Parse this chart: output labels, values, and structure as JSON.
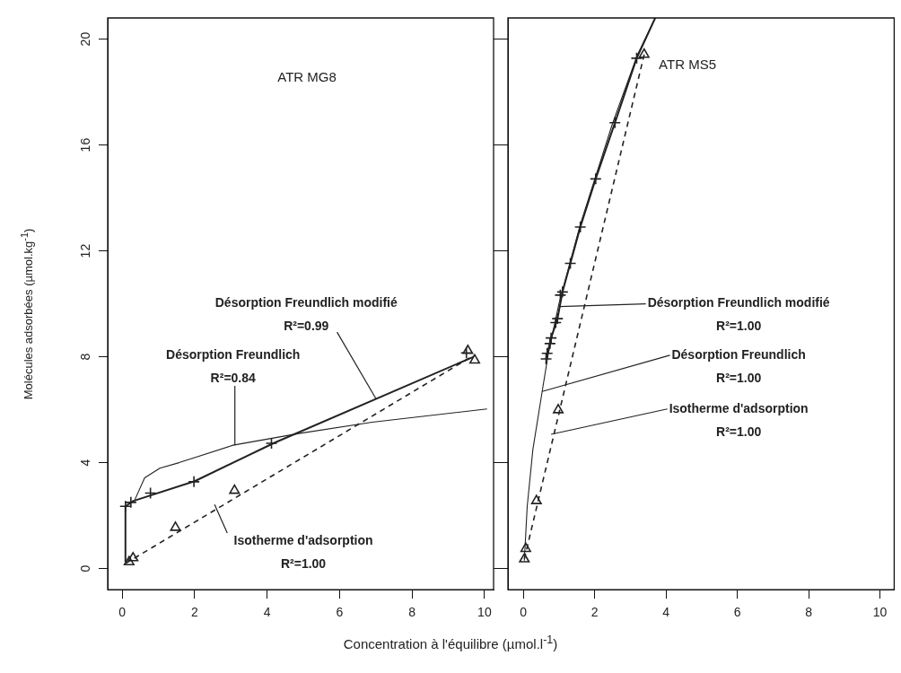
{
  "chart_data": [
    {
      "type": "scatter",
      "title": "ATR MG8",
      "xlabel": "Concentration à l'équilibre (µmol.l$^{-1}$)",
      "ylabel": "Molécules adsorbées (µmol.kg$^{-1}$)",
      "xlim": [
        -0.4,
        10.25
      ],
      "ylim": [
        -0.8,
        20.8
      ],
      "xticks": [
        0,
        2,
        4,
        6,
        8,
        10
      ],
      "yticks": [
        0,
        4,
        8,
        12,
        16,
        20
      ],
      "grid": false,
      "series": [
        {
          "type": "line",
          "color": "#222222",
          "line_style": "dashed",
          "marker": "none",
          "x": [
            0.1,
            9.7
          ],
          "values": [
            0.2,
            8.05
          ]
        },
        {
          "type": "line",
          "color": "#222222",
          "line_style": "solid",
          "marker": "none",
          "x": [
            0.09,
            0.09,
            0.3,
            2.0,
            4.2,
            9.7
          ],
          "values": [
            0.25,
            2.35,
            2.55,
            3.3,
            4.75,
            8.0
          ]
        },
        {
          "type": "line",
          "color": "#222222",
          "line_style": "solid",
          "marker": "none",
          "x": [
            0.35,
            0.62,
            1.04,
            1.57,
            3.06,
            4.87,
            6.9,
            10.07
          ],
          "values": [
            2.6,
            3.43,
            3.79,
            4.0,
            4.66,
            5.1,
            5.53,
            6.03
          ]
        },
        {
          "type": "scatter",
          "color": "#222222",
          "marker": "triangle",
          "x": [
            0.19,
            0.3,
            1.47,
            3.1,
            9.54,
            9.73
          ],
          "values": [
            0.25,
            0.4,
            1.55,
            2.95,
            8.23,
            7.87
          ]
        },
        {
          "type": "scatter",
          "color": "#222222",
          "marker": "cross",
          "x": [
            0.09,
            0.24,
            0.78,
            1.98,
            4.12,
            9.5
          ],
          "values": [
            2.35,
            2.5,
            2.85,
            3.28,
            4.73,
            8.15
          ]
        }
      ],
      "annotations": [
        {
          "text": "Désorption Freundlich modifié\nR²=0.99",
          "x": 7.01,
          "y": 6.4
        },
        {
          "text": "Désorption Freundlich\nR²=0.84",
          "x": 3.11,
          "y": 4.66
        },
        {
          "text": "Isotherme d'adsorption\nR²=1.00",
          "x": 2.55,
          "y": 2.42
        }
      ]
    },
    {
      "type": "scatter",
      "title": "ATR MS5",
      "xlim": [
        -0.43,
        10.4
      ],
      "ylim": [
        -0.8,
        20.8
      ],
      "xticks": [
        0,
        2,
        4,
        6,
        8,
        10
      ],
      "yticks": [
        0,
        4,
        8,
        12,
        16,
        20
      ],
      "grid": false,
      "tick_labels": "x",
      "series": [
        {
          "type": "line",
          "color": "#222222",
          "line_style": "dashed",
          "marker": "none",
          "x": [
            0.03,
            3.39
          ],
          "values": [
            0.36,
            19.42
          ]
        },
        {
          "type": "line",
          "color": "#222222",
          "line_style": "solid",
          "marker": "none",
          "x": [
            0.64,
            0.78,
            0.96,
            1.1,
            1.32,
            1.6,
            2.03,
            2.57,
            3.18,
            3.7
          ],
          "values": [
            7.92,
            8.71,
            9.44,
            10.45,
            11.53,
            12.9,
            14.72,
            16.84,
            19.28,
            20.8
          ]
        },
        {
          "type": "line",
          "color": "#222222",
          "line_style": "solid",
          "marker": "none",
          "x": [
            0.03,
            0.11,
            0.27,
            0.53,
            0.7,
            1.0,
            1.6,
            2.5,
            3.2,
            3.7
          ],
          "values": [
            0.3,
            2.34,
            4.5,
            6.69,
            8.1,
            10.0,
            13.0,
            16.8,
            19.4,
            20.8
          ]
        },
        {
          "type": "scatter",
          "color": "#222222",
          "marker": "triangle",
          "x": [
            0.03,
            0.07,
            0.37,
            0.98,
            3.39
          ],
          "values": [
            0.36,
            0.75,
            2.56,
            5.99,
            19.42
          ]
        },
        {
          "type": "scatter",
          "color": "#222222",
          "marker": "cross",
          "x": [
            0.64,
            0.67,
            0.75,
            0.78,
            0.91,
            0.96,
            1.04,
            1.1,
            1.32,
            1.6,
            2.03,
            2.57,
            3.18
          ],
          "values": [
            7.92,
            8.13,
            8.5,
            8.71,
            9.29,
            9.44,
            10.33,
            10.45,
            11.53,
            12.9,
            14.72,
            16.84,
            19.28
          ]
        }
      ],
      "annotations": [
        {
          "text": "Désorption Freundlich modifié\nR²=1.00",
          "x": 1.02,
          "y": 9.9
        },
        {
          "text": "Désorption Freundlich\nR²=1.00",
          "x": 0.53,
          "y": 6.69
        },
        {
          "text": "Isotherme d'adsorption\nR²=1.00",
          "x": 0.78,
          "y": 5.07
        }
      ]
    }
  ]
}
